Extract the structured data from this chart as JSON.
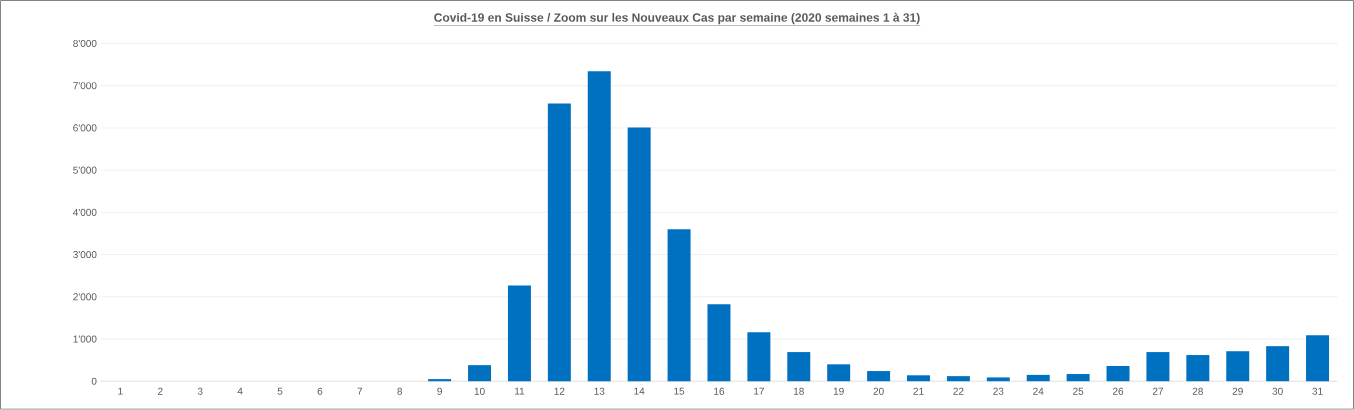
{
  "chart_data": {
    "type": "bar",
    "title": "Covid-19 en Suisse / Zoom  sur les Nouveaux Cas par semaine (2020 semaines 1 à 31)",
    "categories": [
      "1",
      "2",
      "3",
      "4",
      "5",
      "6",
      "7",
      "8",
      "9",
      "10",
      "11",
      "12",
      "13",
      "14",
      "15",
      "16",
      "17",
      "18",
      "19",
      "20",
      "21",
      "22",
      "23",
      "24",
      "25",
      "26",
      "27",
      "28",
      "29",
      "30",
      "31"
    ],
    "values": [
      0,
      0,
      0,
      0,
      0,
      0,
      0,
      0,
      50,
      380,
      2270,
      6580,
      7340,
      6010,
      3600,
      1820,
      1160,
      690,
      400,
      240,
      140,
      120,
      90,
      150,
      170,
      360,
      690,
      620,
      710,
      830,
      1090
    ],
    "color": "#0070c0",
    "ylim": [
      0,
      8000
    ],
    "yticks": [
      0,
      {
        "value": 1000,
        "label": "1'000"
      },
      {
        "value": 2000,
        "label": "2'000"
      },
      {
        "value": 3000,
        "label": "3'000"
      },
      {
        "value": 4000,
        "label": "4'000"
      },
      {
        "value": 5000,
        "label": "5'000"
      },
      {
        "value": 6000,
        "label": "6'000"
      },
      {
        "value": 7000,
        "label": "7'000"
      },
      {
        "value": 8000,
        "label": "8'000"
      }
    ],
    "grid": "y"
  }
}
